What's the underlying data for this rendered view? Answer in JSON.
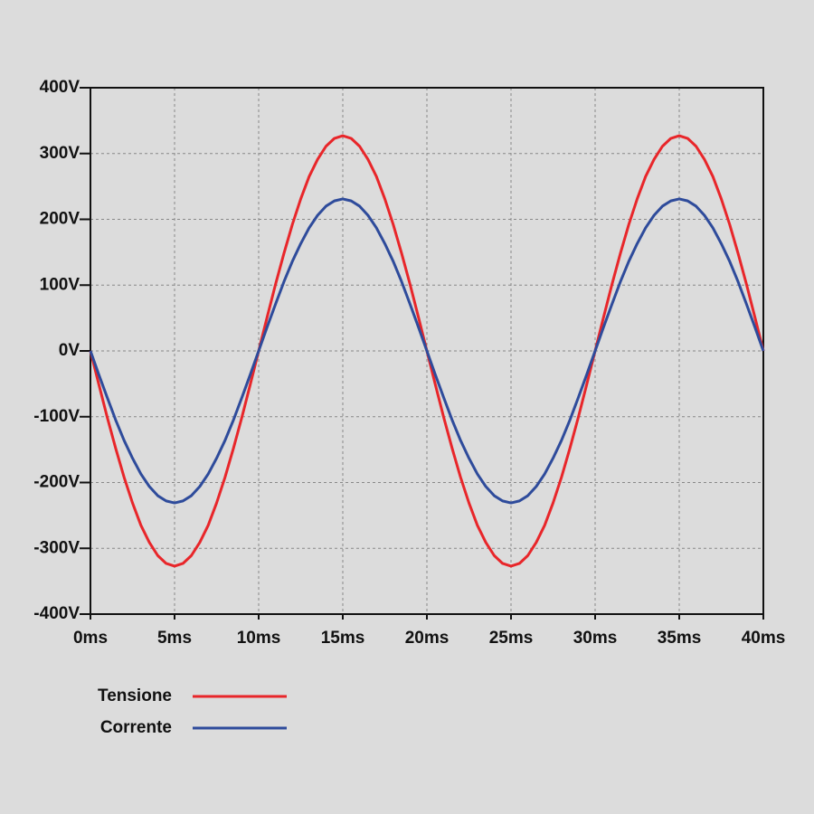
{
  "chart_data": {
    "type": "line",
    "x": [
      0,
      0.5,
      1,
      1.5,
      2,
      2.5,
      3,
      3.5,
      4,
      4.5,
      5,
      5.5,
      6,
      6.5,
      7,
      7.5,
      8,
      8.5,
      9,
      9.5,
      10,
      10.5,
      11,
      11.5,
      12,
      12.5,
      13,
      13.5,
      14,
      14.5,
      15,
      15.5,
      16,
      16.5,
      17,
      17.5,
      18,
      18.5,
      19,
      19.5,
      20,
      20.5,
      21,
      21.5,
      22,
      22.5,
      23,
      23.5,
      24,
      24.5,
      25,
      25.5,
      26,
      26.5,
      27,
      27.5,
      28,
      28.5,
      29,
      29.5,
      30,
      30.5,
      31,
      31.5,
      32,
      32.5,
      33,
      33.5,
      34,
      34.5,
      35,
      35.5,
      36,
      36.5,
      37,
      37.5,
      38,
      38.5,
      39,
      39.5,
      40
    ],
    "series": [
      {
        "name": "Tensione",
        "color": "#e8262a",
        "values": [
          0,
          -51,
          -101,
          -148,
          -192,
          -231,
          -265,
          -291,
          -311,
          -323,
          -327,
          -323,
          -311,
          -291,
          -265,
          -231,
          -192,
          -148,
          -101,
          -51,
          0,
          51,
          101,
          148,
          192,
          231,
          265,
          291,
          311,
          323,
          327,
          323,
          311,
          291,
          265,
          231,
          192,
          148,
          101,
          51,
          0,
          -51,
          -101,
          -148,
          -192,
          -231,
          -265,
          -291,
          -311,
          -323,
          -327,
          -323,
          -311,
          -291,
          -265,
          -231,
          -192,
          -148,
          -101,
          -51,
          0,
          51,
          101,
          148,
          192,
          231,
          265,
          291,
          311,
          323,
          327,
          323,
          311,
          291,
          265,
          231,
          192,
          148,
          101,
          51,
          0
        ]
      },
      {
        "name": "Corrente",
        "color": "#2e4b9b",
        "values": [
          0,
          -36,
          -71,
          -105,
          -136,
          -163,
          -187,
          -206,
          -220,
          -228,
          -231,
          -228,
          -220,
          -206,
          -187,
          -163,
          -136,
          -105,
          -71,
          -36,
          0,
          36,
          71,
          105,
          136,
          163,
          187,
          206,
          220,
          228,
          231,
          228,
          220,
          206,
          187,
          163,
          136,
          105,
          71,
          36,
          0,
          -36,
          -71,
          -105,
          -136,
          -163,
          -187,
          -206,
          -220,
          -228,
          -231,
          -228,
          -220,
          -206,
          -187,
          -163,
          -136,
          -105,
          -71,
          -36,
          0,
          36,
          71,
          105,
          136,
          163,
          187,
          206,
          220,
          228,
          231,
          228,
          220,
          206,
          187,
          163,
          136,
          105,
          71,
          36,
          0
        ]
      }
    ],
    "xlim": [
      0,
      40
    ],
    "xticks": [
      {
        "value": 0,
        "label": "0ms"
      },
      {
        "value": 5,
        "label": "5ms"
      },
      {
        "value": 10,
        "label": "10ms"
      },
      {
        "value": 15,
        "label": "15ms"
      },
      {
        "value": 20,
        "label": "20ms"
      },
      {
        "value": 25,
        "label": "25ms"
      },
      {
        "value": 30,
        "label": "30ms"
      },
      {
        "value": 35,
        "label": "35ms"
      },
      {
        "value": 40,
        "label": "40ms"
      }
    ],
    "ylim": [
      -400,
      400
    ],
    "yticks": [
      {
        "value": -400,
        "label": "-400V"
      },
      {
        "value": -300,
        "label": "-300V"
      },
      {
        "value": -200,
        "label": "-200V"
      },
      {
        "value": -100,
        "label": "-100V"
      },
      {
        "value": 0,
        "label": "0V"
      },
      {
        "value": 100,
        "label": "100V"
      },
      {
        "value": 200,
        "label": "200V"
      },
      {
        "value": 300,
        "label": "300V"
      },
      {
        "value": 400,
        "label": "400V"
      }
    ],
    "grid": true
  }
}
